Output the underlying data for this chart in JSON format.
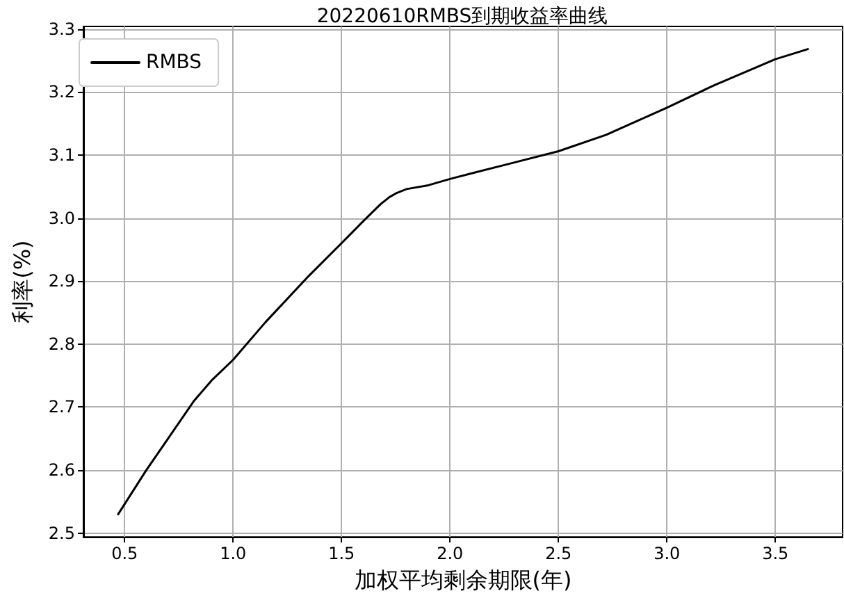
{
  "chart_data": {
    "type": "line",
    "title": "20220610RMBS到期收益率曲线",
    "xlabel": "加权平均剩余期限(年)",
    "ylabel": "利率(%)",
    "x": [
      0.47,
      0.6,
      0.7,
      0.82,
      0.9,
      1.0,
      1.15,
      1.34,
      1.5,
      1.6,
      1.68,
      1.72,
      1.75,
      1.8,
      1.9,
      2.0,
      2.1,
      2.25,
      2.5,
      2.72,
      3.0,
      3.22,
      3.5,
      3.65
    ],
    "series": [
      {
        "name": "RMBS",
        "color": "#000000",
        "values": [
          2.53,
          2.6,
          2.65,
          2.71,
          2.742,
          2.775,
          2.835,
          2.905,
          2.96,
          2.995,
          3.022,
          3.033,
          3.039,
          3.046,
          3.052,
          3.062,
          3.071,
          3.084,
          3.106,
          3.132,
          3.175,
          3.211,
          3.252,
          3.268
        ]
      }
    ],
    "xlim": [
      0.31,
      3.81
    ],
    "ylim": [
      2.494,
      3.304
    ],
    "xticks": [
      0.5,
      {
        "value": 1,
        "label": "1.0"
      },
      1.5,
      {
        "value": 2,
        "label": "2.0"
      },
      2.5,
      {
        "value": 3,
        "label": "3.0"
      },
      3.5
    ],
    "yticks": [
      2.5,
      2.6,
      2.7,
      2.8,
      2.9,
      {
        "value": 3,
        "label": "3.0"
      },
      3.1,
      3.2,
      3.3
    ],
    "grid": true,
    "legend": "top left",
    "marker": "none",
    "line_style": "solid"
  }
}
